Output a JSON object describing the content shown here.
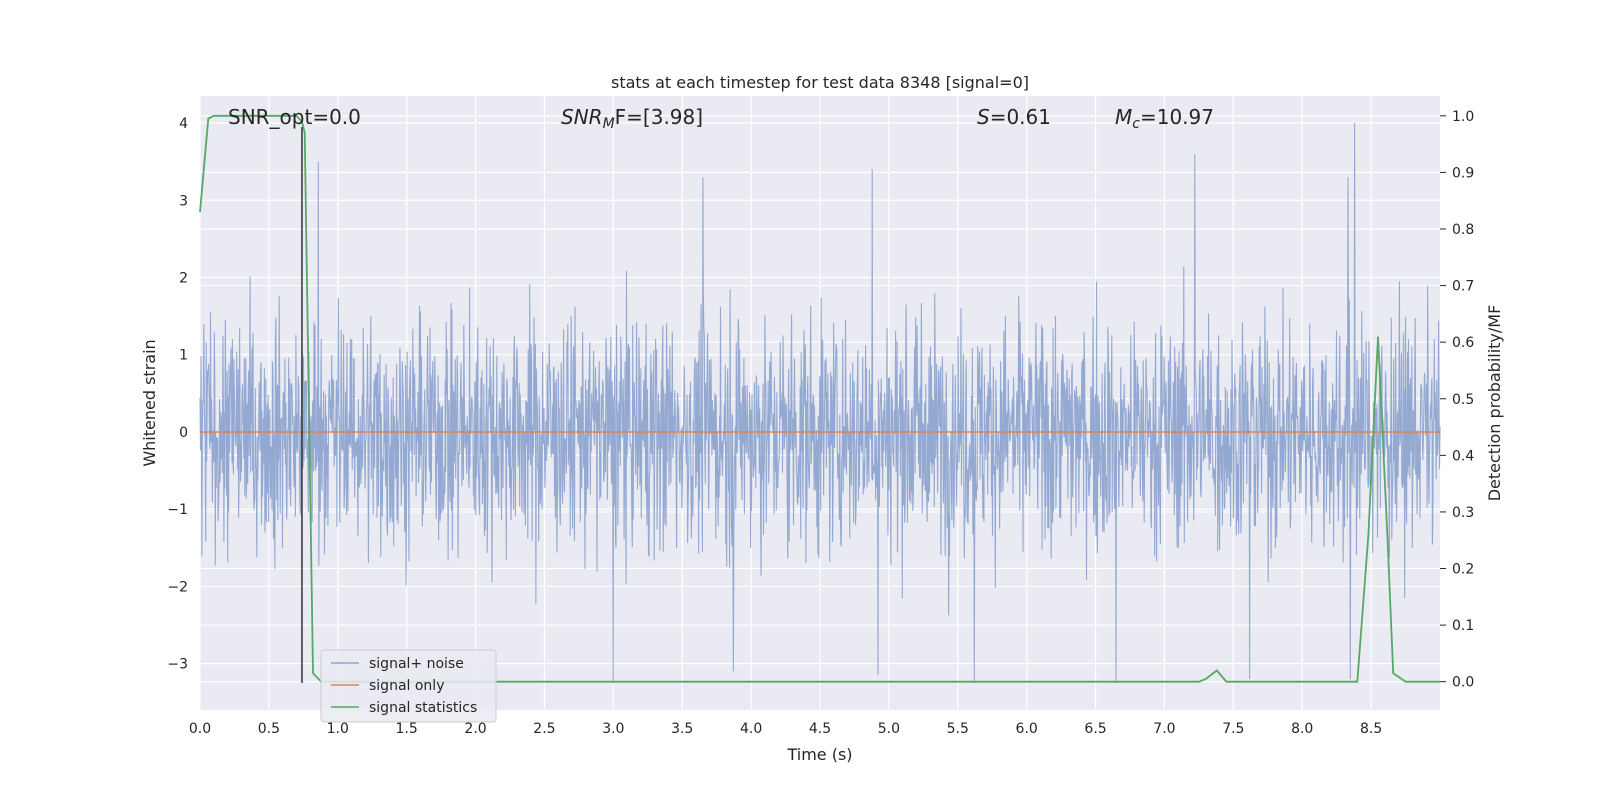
{
  "chart_data": {
    "type": "line",
    "title": "stats at each timestep for test data 8348 [signal=0]",
    "xlabel": "Time (s)",
    "ylabel_left": "Whitened strain",
    "ylabel_right": "Detection probability/MF",
    "xlim": [
      0,
      9
    ],
    "ylim_left": [
      -3.6,
      4.35
    ],
    "ylim_right": [
      -0.05,
      1.035
    ],
    "x_ticks": [
      "0.0",
      "0.5",
      "1.0",
      "1.5",
      "2.0",
      "2.5",
      "3.0",
      "3.5",
      "4.0",
      "4.5",
      "5.0",
      "5.5",
      "6.0",
      "6.5",
      "7.0",
      "7.5",
      "8.0",
      "8.5"
    ],
    "y_ticks_left": [
      "−3",
      "−2",
      "−1",
      "0",
      "1",
      "2",
      "3",
      "4"
    ],
    "y_ticks_right": [
      "0.0",
      "0.1",
      "0.2",
      "0.3",
      "0.4",
      "0.5",
      "0.6",
      "0.7",
      "0.8",
      "0.9",
      "1.0"
    ],
    "grid": true,
    "legend_position": "bottom-left",
    "annotations": {
      "snr_opt": "SNR_opt=0.0",
      "snr_mf_base": "SNR",
      "snr_mf_sub": "M",
      "snr_mf_rest": "F=[3.98]",
      "s_var": "S",
      "s_value": "=0.61",
      "mc_var": "M",
      "mc_sub": "c",
      "mc_value": "=10.97"
    },
    "series": [
      {
        "name": "signal+ noise",
        "axis": "left",
        "color": "#8fa5cf",
        "style": "dense whitened-noise trace, 8192 samples over 9 s",
        "sample_peaks": [
          {
            "x": 0.86,
            "y": 3.5
          },
          {
            "x": 3.65,
            "y": 3.3
          },
          {
            "x": 4.88,
            "y": 3.4
          },
          {
            "x": 7.22,
            "y": 3.6
          },
          {
            "x": 8.38,
            "y": 4.0
          },
          {
            "x": 8.33,
            "y": 3.3
          },
          {
            "x": 3.0,
            "y": -3.25
          },
          {
            "x": 3.87,
            "y": -3.1
          },
          {
            "x": 4.92,
            "y": -3.15
          },
          {
            "x": 5.62,
            "y": -3.25
          },
          {
            "x": 6.65,
            "y": -3.25
          },
          {
            "x": 7.62,
            "y": -3.2
          },
          {
            "x": 8.35,
            "y": -3.2
          }
        ]
      },
      {
        "name": "signal only",
        "axis": "left",
        "color": "#dd8452",
        "x": [
          0,
          9
        ],
        "y": [
          0,
          0
        ]
      },
      {
        "name": "signal statistics",
        "axis": "right",
        "color": "#55a868",
        "x": [
          0.0,
          0.06,
          0.1,
          0.2,
          0.4,
          0.6,
          0.7,
          0.74,
          0.76,
          0.82,
          0.88,
          1.0,
          2.0,
          3.0,
          4.0,
          5.0,
          6.0,
          7.0,
          7.25,
          7.3,
          7.38,
          7.45,
          7.6,
          8.0,
          8.3,
          8.4,
          8.48,
          8.55,
          8.62,
          8.66,
          8.75,
          9.0
        ],
        "y": [
          0.83,
          0.995,
          1.0,
          1.0,
          1.0,
          1.0,
          1.0,
          0.99,
          0.97,
          0.015,
          0.0,
          0.0,
          0.0,
          0.0,
          0.0,
          0.0,
          0.0,
          0.0,
          0.0,
          0.005,
          0.02,
          0.0,
          0.0,
          0.0,
          0.0,
          0.0,
          0.26,
          0.61,
          0.25,
          0.015,
          0.0,
          0.0
        ]
      }
    ],
    "vertical_marker_x": 0.74
  },
  "colors": {
    "plot_background": "#eaeaf2",
    "grid": "#ffffff",
    "noise": "#8fa5cf",
    "signal": "#dd8452",
    "statistics": "#55a868",
    "marker": "#333333"
  }
}
